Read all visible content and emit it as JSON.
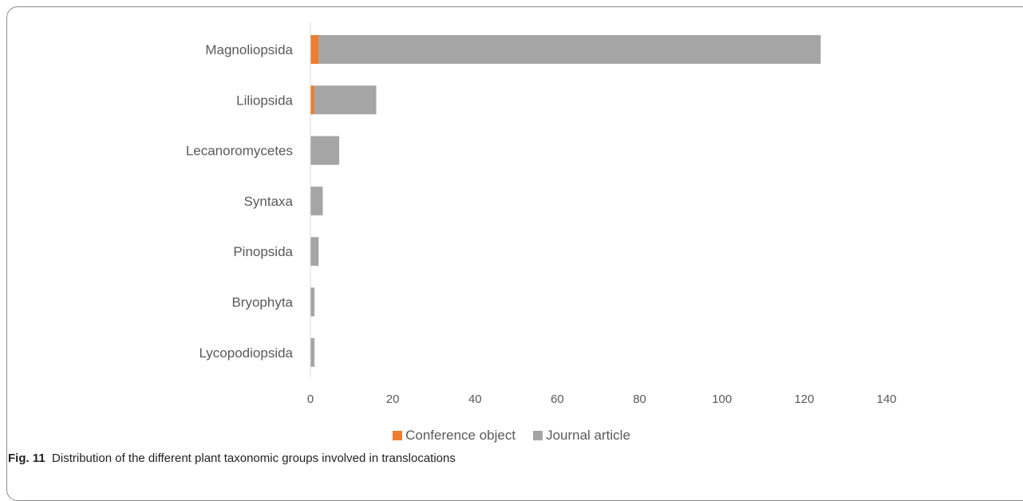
{
  "chart_data": {
    "type": "bar",
    "orientation": "horizontal",
    "stacked": true,
    "categories": [
      "Magnoliopsida",
      "Liliopsida",
      "Lecanoromycetes",
      "Syntaxa",
      "Pinopsida",
      "Bryophyta",
      "Lycopodiopsida"
    ],
    "series": [
      {
        "name": "Conference object",
        "color": "#ed7d31",
        "values": [
          2,
          1,
          0,
          0,
          0,
          0,
          0
        ]
      },
      {
        "name": "Journal article",
        "color": "#a5a5a5",
        "values": [
          122,
          15,
          7,
          3,
          2,
          1,
          1
        ]
      }
    ],
    "xticks": [
      "0",
      "20",
      "40",
      "60",
      "80",
      "100",
      "120",
      "140"
    ],
    "xlim": [
      0,
      140
    ],
    "grid": false,
    "legend_position": "bottom"
  },
  "legend": {
    "items": [
      {
        "label": "Conference object",
        "color": "#ed7d31"
      },
      {
        "label": "Journal article",
        "color": "#a5a5a5"
      }
    ]
  },
  "caption": {
    "label": "Fig. 11",
    "text": "Distribution of the different plant taxonomic groups involved in translocations"
  }
}
